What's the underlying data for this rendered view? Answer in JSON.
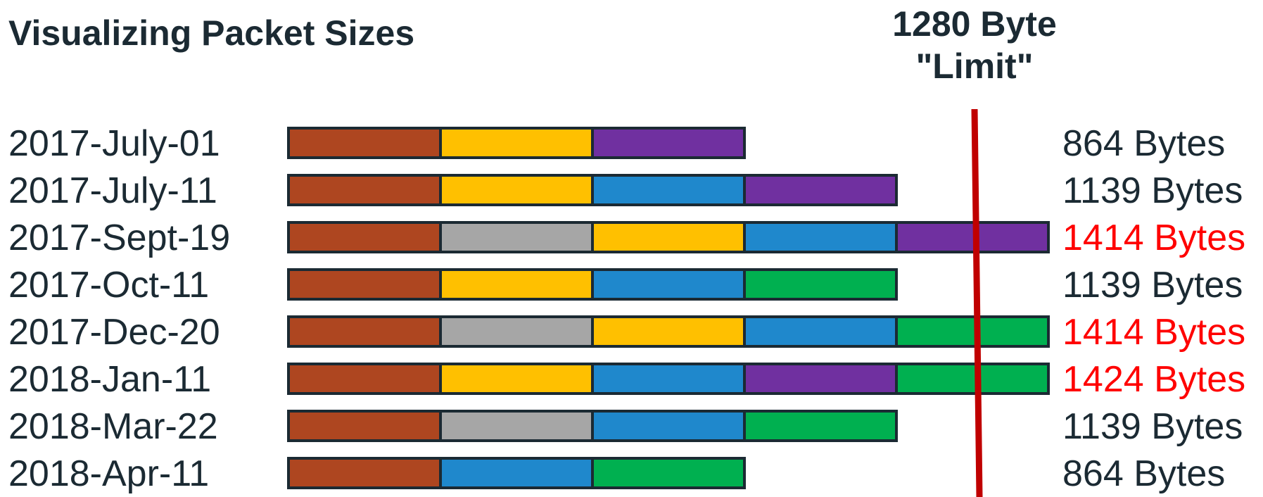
{
  "title": "Visualizing Packet Sizes",
  "limit": {
    "line1": "1280 Byte",
    "line2": "\"Limit\"",
    "value_bytes": 1280,
    "line_color": "#c00000"
  },
  "colors": {
    "text": "#1b2a33",
    "over_limit_text": "#ff0000",
    "outline": "#1b2a33"
  },
  "segment_colors": {
    "brown": "#ae4620",
    "yellow": "#ffc000",
    "purple": "#7030a0",
    "blue": "#1f88cc",
    "gray": "#a6a6a6",
    "green": "#00b050"
  },
  "chart_data": {
    "type": "bar",
    "categories": [
      "2017-July-01",
      "2017-July-11",
      "2017-Sept-19",
      "2017-Oct-11",
      "2017-Dec-20",
      "2018-Jan-11",
      "2018-Mar-22",
      "2018-Apr-11"
    ],
    "values": [
      864,
      1139,
      1414,
      1139,
      1414,
      1424,
      1139,
      864
    ],
    "size_labels": [
      "864 Bytes",
      "1139 Bytes",
      "1414 Bytes",
      "1139 Bytes",
      "1414 Bytes",
      "1424 Bytes",
      "1139 Bytes",
      "864 Bytes"
    ],
    "over_limit": [
      false,
      false,
      true,
      false,
      true,
      true,
      false,
      false
    ],
    "segments": [
      [
        "brown",
        "yellow",
        "purple"
      ],
      [
        "brown",
        "yellow",
        "blue",
        "purple"
      ],
      [
        "brown",
        "gray",
        "yellow",
        "blue",
        "purple"
      ],
      [
        "brown",
        "yellow",
        "blue",
        "green"
      ],
      [
        "brown",
        "gray",
        "yellow",
        "blue",
        "green"
      ],
      [
        "brown",
        "yellow",
        "blue",
        "purple",
        "green"
      ],
      [
        "brown",
        "gray",
        "blue",
        "green"
      ],
      [
        "brown",
        "blue",
        "green"
      ]
    ]
  }
}
